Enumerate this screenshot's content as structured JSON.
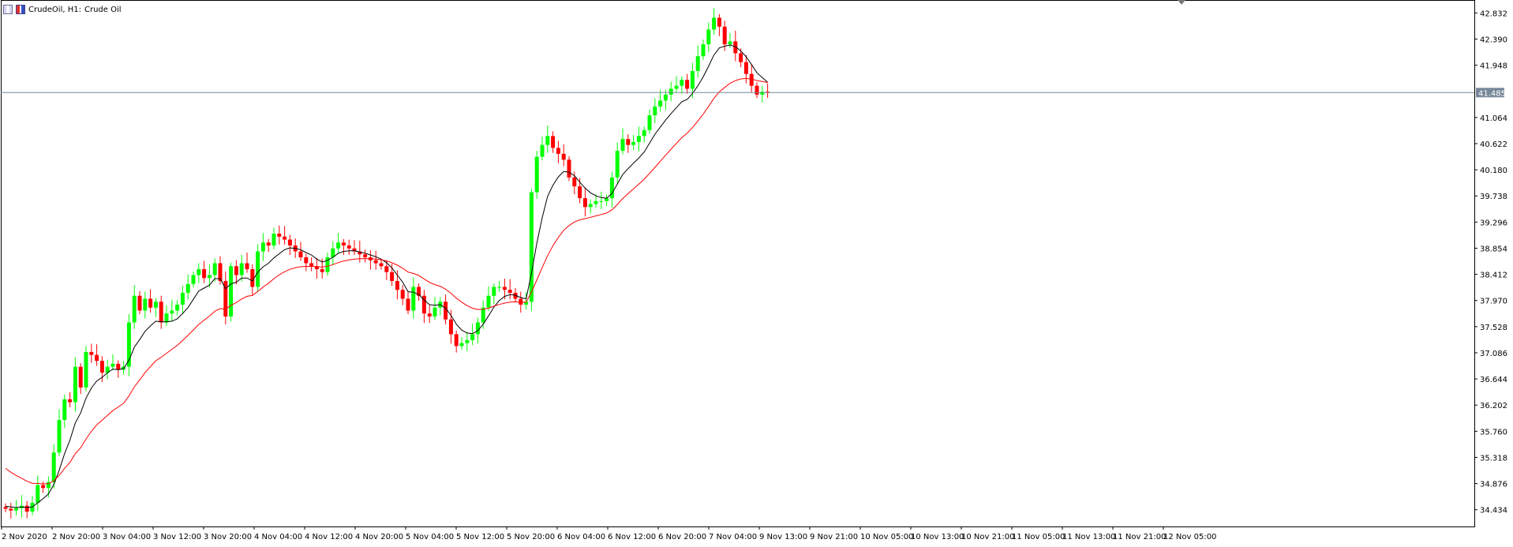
{
  "window": {
    "symbol_label": "CrudeOil, H1:",
    "description": "Crude Oil"
  },
  "colors": {
    "bull": "#00ff00",
    "bear": "#ff0000",
    "ma_fast": "#000000",
    "ma_slow": "#ff0000",
    "grid": "#000000",
    "price_line": "#778899",
    "price_label_bg": "#778899"
  },
  "icons": {
    "left": "chart-properties-icon",
    "right": "chart-type-icon",
    "top_marker": "shift-marker-icon"
  },
  "chart_data": {
    "type": "candlestick",
    "title": "",
    "xlabel": "",
    "ylabel": "",
    "ylim": [
      34.15,
      43.05
    ],
    "grid": false,
    "y_ticks": [
      "42.832",
      "42.390",
      "41.948",
      "41.064",
      "40.622",
      "40.180",
      "39.738",
      "39.296",
      "38.854",
      "38.412",
      "37.970",
      "37.528",
      "37.086",
      "36.644",
      "36.202",
      "35.760",
      "35.318",
      "34.876",
      "34.434"
    ],
    "current_price": "41.485",
    "x_ticks": [
      "2 Nov 2020",
      "2 Nov 20:00",
      "3 Nov 04:00",
      "3 Nov 12:00",
      "3 Nov 20:00",
      "4 Nov 04:00",
      "4 Nov 12:00",
      "4 Nov 20:00",
      "5 Nov 04:00",
      "5 Nov 12:00",
      "5 Nov 20:00",
      "6 Nov 04:00",
      "6 Nov 12:00",
      "6 Nov 20:00",
      "7 Nov 04:00",
      "9 Nov 13:00",
      "9 Nov 21:00",
      "10 Nov 05:00",
      "10 Nov 13:00",
      "10 Nov 21:00",
      "11 Nov 05:00",
      "11 Nov 13:00",
      "11 Nov 21:00",
      "12 Nov 05:00"
    ],
    "closes": [
      34.45,
      34.42,
      34.46,
      34.5,
      34.4,
      34.55,
      34.85,
      34.8,
      34.9,
      35.4,
      35.95,
      36.3,
      36.25,
      36.85,
      36.5,
      37.1,
      37.05,
      36.95,
      36.75,
      36.85,
      36.9,
      36.8,
      36.85,
      37.6,
      38.05,
      37.8,
      38.0,
      37.85,
      37.95,
      37.6,
      37.75,
      37.8,
      37.9,
      38.1,
      38.25,
      38.4,
      38.5,
      38.35,
      38.4,
      38.6,
      38.3,
      37.7,
      38.55,
      38.4,
      38.6,
      38.5,
      38.2,
      38.8,
      38.95,
      38.9,
      39.1,
      39.05,
      39.0,
      38.9,
      38.8,
      38.7,
      38.6,
      38.55,
      38.5,
      38.45,
      38.7,
      38.85,
      38.95,
      38.9,
      38.85,
      38.8,
      38.75,
      38.7,
      38.65,
      38.6,
      38.55,
      38.45,
      38.3,
      38.15,
      38.0,
      37.8,
      38.2,
      38.05,
      37.75,
      37.7,
      37.85,
      37.95,
      37.65,
      37.4,
      37.2,
      37.25,
      37.3,
      37.4,
      37.6,
      37.85,
      38.05,
      38.2,
      38.2,
      38.15,
      38.1,
      38.0,
      37.9,
      37.95,
      39.8,
      40.4,
      40.6,
      40.75,
      40.55,
      40.45,
      40.35,
      40.05,
      39.9,
      39.7,
      39.55,
      39.6,
      39.65,
      39.65,
      39.7,
      40.05,
      40.5,
      40.7,
      40.6,
      40.65,
      40.75,
      40.85,
      41.1,
      41.25,
      41.35,
      41.45,
      41.55,
      41.6,
      41.7,
      41.55,
      41.85,
      42.1,
      42.3,
      42.55,
      42.75,
      42.6,
      42.3,
      42.35,
      42.15,
      42.0,
      41.8,
      41.6,
      41.45,
      41.5,
      41.48
    ],
    "ma_fast": [
      34.49,
      34.48,
      34.47,
      34.48,
      34.47,
      34.48,
      34.55,
      34.62,
      34.7,
      34.86,
      35.1,
      35.38,
      35.61,
      35.9,
      36.07,
      36.32,
      36.49,
      36.61,
      36.67,
      36.75,
      36.81,
      36.8,
      36.82,
      36.96,
      37.18,
      37.31,
      37.45,
      37.54,
      37.62,
      37.61,
      37.61,
      37.62,
      37.66,
      37.75,
      37.85,
      37.99,
      38.13,
      38.18,
      38.23,
      38.34,
      38.34,
      38.17,
      38.25,
      38.28,
      38.35,
      38.35,
      38.3,
      38.45,
      38.54,
      38.6,
      38.69,
      38.76,
      38.83,
      38.86,
      38.85,
      38.83,
      38.78,
      38.74,
      38.67,
      38.62,
      38.65,
      38.7,
      38.77,
      38.8,
      38.81,
      38.81,
      38.79,
      38.77,
      38.74,
      38.71,
      38.67,
      38.61,
      38.52,
      38.4,
      38.28,
      38.12,
      38.11,
      38.07,
      37.98,
      37.9,
      37.89,
      37.9,
      37.84,
      37.72,
      37.57,
      37.47,
      37.42,
      37.41,
      37.46,
      37.57,
      37.71,
      37.86,
      37.97,
      38.04,
      38.07,
      38.06,
      38.02,
      38.0,
      38.43,
      38.94,
      39.37,
      39.73,
      39.92,
      40.06,
      40.15,
      40.14,
      40.08,
      39.97,
      39.87,
      39.79,
      39.74,
      39.71,
      39.7,
      39.78,
      39.94,
      40.1,
      40.2,
      40.29,
      40.38,
      40.48,
      40.63,
      40.78,
      40.9,
      41.02,
      41.13,
      41.23,
      41.33,
      41.37,
      41.47,
      41.6,
      41.75,
      41.93,
      42.12,
      42.24,
      42.27,
      42.29,
      42.26,
      42.19,
      42.09,
      41.96,
      41.82,
      41.74,
      41.66
    ]
  }
}
